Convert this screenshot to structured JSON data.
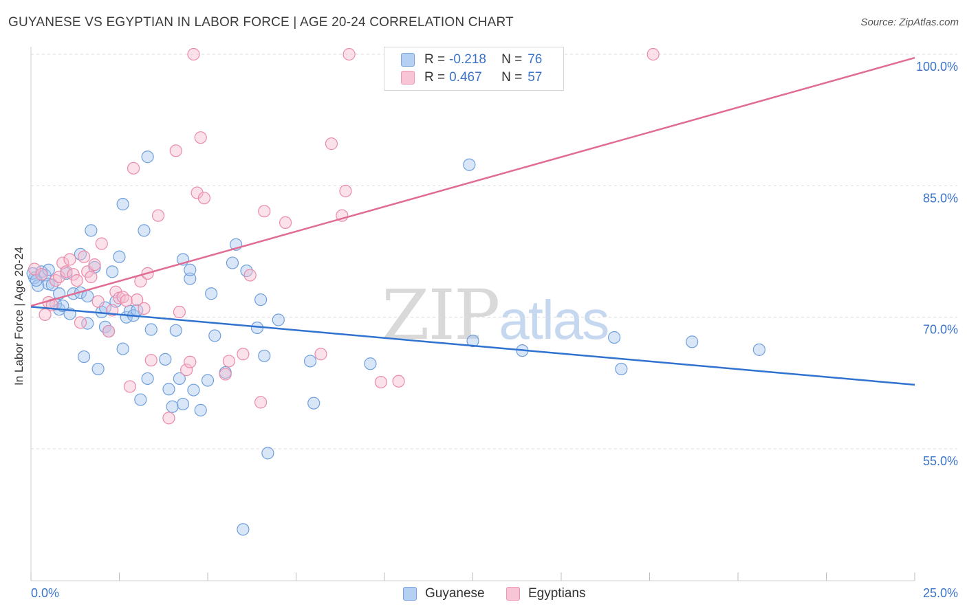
{
  "header": {
    "title": "GUYANESE VS EGYPTIAN IN LABOR FORCE | AGE 20-24 CORRELATION CHART",
    "source": "Source: ZipAtlas.com"
  },
  "watermark": {
    "zip": "ZIP",
    "atlas": "atlas"
  },
  "legend": {
    "guyanese": {
      "r_label": "R =",
      "r_value": "-0.218",
      "n_label": "N =",
      "n_value": "76"
    },
    "egyptians": {
      "r_label": "R =",
      "r_value": "0.467",
      "n_label": "N =",
      "n_value": "57"
    }
  },
  "bottom_legend": {
    "guyanese": "Guyanese",
    "egyptians": "Egyptians"
  },
  "colors": {
    "guyanese_fill": "#a9c8f0",
    "guyanese_stroke": "#6f9fdc",
    "guyanese_line": "#2f72d0",
    "egyptians_fill": "#f7bcd0",
    "egyptians_stroke": "#eb8aa9",
    "egyptians_line": "#e06c93",
    "axis_label": "#3a73c8",
    "grid": "#dcdcdc"
  },
  "chart_data": {
    "type": "scatter",
    "title": "GUYANESE VS EGYPTIAN IN LABOR FORCE | AGE 20-24 CORRELATION CHART",
    "xlabel": "",
    "ylabel": "In Labor Force | Age 20-24",
    "xlim": [
      0,
      25
    ],
    "ylim": [
      40,
      101.5
    ],
    "x_ticks": [
      "0.0%",
      "25.0%"
    ],
    "y_ticks": [
      {
        "value": 55,
        "label": "55.0%"
      },
      {
        "value": 70,
        "label": "70.0%"
      },
      {
        "value": 85,
        "label": "85.0%"
      },
      {
        "value": 100,
        "label": "100.0%"
      }
    ],
    "grid": true,
    "legend_placement": "top-center",
    "series": [
      {
        "name": "Guyanese",
        "r": -0.218,
        "n": 76,
        "trend": {
          "x": [
            0,
            25
          ],
          "y": [
            71.2,
            62.3
          ]
        },
        "points": [
          [
            0.1,
            74.5
          ],
          [
            0.2,
            73.6
          ],
          [
            0.3,
            75.2
          ],
          [
            0.4,
            74.8
          ],
          [
            0.5,
            73.8
          ],
          [
            0.5,
            75.4
          ],
          [
            0.6,
            73.7
          ],
          [
            0.7,
            71.5
          ],
          [
            0.8,
            72.7
          ],
          [
            0.8,
            70.9
          ],
          [
            0.9,
            71.3
          ],
          [
            1.0,
            75.0
          ],
          [
            1.1,
            70.4
          ],
          [
            1.2,
            72.7
          ],
          [
            1.4,
            77.2
          ],
          [
            1.4,
            72.8
          ],
          [
            1.5,
            65.5
          ],
          [
            1.6,
            72.4
          ],
          [
            1.6,
            69.3
          ],
          [
            1.7,
            79.9
          ],
          [
            1.8,
            75.7
          ],
          [
            1.9,
            64.1
          ],
          [
            2.0,
            70.6
          ],
          [
            2.1,
            71.1
          ],
          [
            2.1,
            68.9
          ],
          [
            2.2,
            68.4
          ],
          [
            2.3,
            75.2
          ],
          [
            2.4,
            71.8
          ],
          [
            2.5,
            76.9
          ],
          [
            2.6,
            82.9
          ],
          [
            2.6,
            66.4
          ],
          [
            2.7,
            70.0
          ],
          [
            2.8,
            70.7
          ],
          [
            2.9,
            70.2
          ],
          [
            3.0,
            70.8
          ],
          [
            3.1,
            60.6
          ],
          [
            3.2,
            79.9
          ],
          [
            3.3,
            63.0
          ],
          [
            3.3,
            88.3
          ],
          [
            3.4,
            68.6
          ],
          [
            3.8,
            65.2
          ],
          [
            3.9,
            61.8
          ],
          [
            4.0,
            59.8
          ],
          [
            4.1,
            68.5
          ],
          [
            4.2,
            63.0
          ],
          [
            4.3,
            60.1
          ],
          [
            4.3,
            76.6
          ],
          [
            4.5,
            74.4
          ],
          [
            4.5,
            75.4
          ],
          [
            4.6,
            61.7
          ],
          [
            4.8,
            59.4
          ],
          [
            5.0,
            62.8
          ],
          [
            5.1,
            72.7
          ],
          [
            5.2,
            67.9
          ],
          [
            5.5,
            63.7
          ],
          [
            5.7,
            76.2
          ],
          [
            5.8,
            78.3
          ],
          [
            6.0,
            45.8
          ],
          [
            6.1,
            75.3
          ],
          [
            6.4,
            68.8
          ],
          [
            6.5,
            72.0
          ],
          [
            6.6,
            65.6
          ],
          [
            6.7,
            54.5
          ],
          [
            7.0,
            69.7
          ],
          [
            7.9,
            65.0
          ],
          [
            8.0,
            60.2
          ],
          [
            9.6,
            64.7
          ],
          [
            12.4,
            87.4
          ],
          [
            12.5,
            67.3
          ],
          [
            13.9,
            66.2
          ],
          [
            16.5,
            67.7
          ],
          [
            16.7,
            64.1
          ],
          [
            18.7,
            67.2
          ],
          [
            20.6,
            66.3
          ],
          [
            0.05,
            75.0
          ],
          [
            0.15,
            74.2
          ]
        ]
      },
      {
        "name": "Egyptians",
        "r": 0.467,
        "n": 57,
        "trend": {
          "x": [
            0,
            25
          ],
          "y": [
            71.3,
            99.6
          ]
        },
        "points": [
          [
            0.1,
            75.5
          ],
          [
            0.3,
            74.9
          ],
          [
            0.4,
            70.3
          ],
          [
            0.5,
            71.7
          ],
          [
            0.6,
            71.4
          ],
          [
            0.7,
            74.2
          ],
          [
            0.8,
            74.6
          ],
          [
            0.9,
            76.2
          ],
          [
            1.0,
            75.2
          ],
          [
            1.1,
            76.6
          ],
          [
            1.2,
            74.9
          ],
          [
            1.3,
            74.2
          ],
          [
            1.4,
            69.4
          ],
          [
            1.5,
            76.9
          ],
          [
            1.6,
            75.2
          ],
          [
            1.7,
            74.6
          ],
          [
            1.8,
            76.0
          ],
          [
            1.9,
            71.8
          ],
          [
            2.0,
            78.4
          ],
          [
            2.2,
            68.4
          ],
          [
            2.3,
            70.8
          ],
          [
            2.4,
            72.9
          ],
          [
            2.5,
            72.2
          ],
          [
            2.6,
            72.3
          ],
          [
            2.7,
            71.9
          ],
          [
            2.8,
            62.1
          ],
          [
            2.9,
            87.0
          ],
          [
            3.0,
            72.0
          ],
          [
            3.1,
            74.1
          ],
          [
            3.2,
            71.0
          ],
          [
            3.3,
            75.0
          ],
          [
            3.4,
            65.1
          ],
          [
            3.6,
            81.6
          ],
          [
            3.9,
            58.5
          ],
          [
            4.1,
            89.0
          ],
          [
            4.2,
            70.6
          ],
          [
            4.4,
            64.0
          ],
          [
            4.5,
            64.9
          ],
          [
            4.7,
            84.2
          ],
          [
            4.8,
            90.5
          ],
          [
            4.9,
            83.6
          ],
          [
            5.5,
            63.5
          ],
          [
            5.6,
            65.0
          ],
          [
            6.0,
            65.8
          ],
          [
            6.2,
            74.8
          ],
          [
            6.5,
            60.3
          ],
          [
            6.6,
            82.1
          ],
          [
            7.2,
            80.8
          ],
          [
            8.2,
            65.8
          ],
          [
            8.5,
            89.8
          ],
          [
            8.8,
            81.6
          ],
          [
            8.9,
            84.4
          ],
          [
            9.9,
            62.6
          ],
          [
            10.4,
            62.7
          ],
          [
            4.6,
            100.0
          ],
          [
            9.0,
            100.0
          ],
          [
            17.6,
            100.0
          ]
        ]
      }
    ]
  }
}
